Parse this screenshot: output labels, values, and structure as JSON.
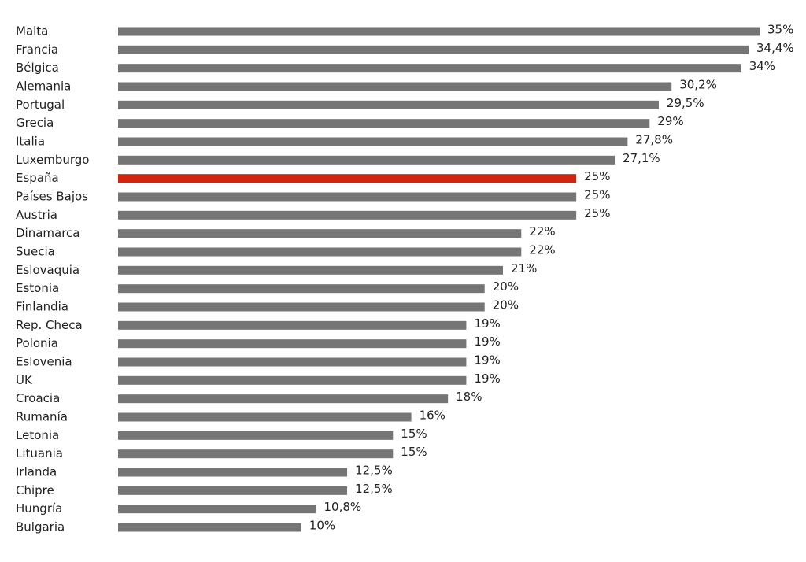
{
  "chart_data": {
    "type": "bar",
    "orientation": "horizontal",
    "categories": [
      "Malta",
      "Francia",
      "Bélgica",
      "Alemania",
      "Portugal",
      "Grecia",
      "Italia",
      "Luxemburgo",
      "España",
      "Países Bajos",
      "Austria",
      "Dinamarca",
      "Suecia",
      "Eslovaquia",
      "Estonia",
      "Finlandia",
      "Rep. Checa",
      "Polonia",
      "Eslovenia",
      "UK",
      "Croacia",
      "Rumanía",
      "Letonia",
      "Lituania",
      "Irlanda",
      "Chipre",
      "Hungría",
      "Bulgaria"
    ],
    "values": [
      35,
      34.4,
      34,
      30.2,
      29.5,
      29,
      27.8,
      27.1,
      25,
      25,
      25,
      22,
      22,
      21,
      20,
      20,
      19,
      19,
      19,
      19,
      18,
      16,
      15,
      15,
      12.5,
      12.5,
      10.8,
      10
    ],
    "value_labels": [
      "35%",
      "34,4%",
      "34%",
      "30,2%",
      "29,5%",
      "29%",
      "27,8%",
      "27,1%",
      "25%",
      "25%",
      "25%",
      "22%",
      "22%",
      "21%",
      "20%",
      "20%",
      "19%",
      "19%",
      "19%",
      "19%",
      "18%",
      "16%",
      "15%",
      "15%",
      "12,5%",
      "12,5%",
      "10,8%",
      "10%"
    ],
    "colors": [
      "#757575",
      "#757575",
      "#757575",
      "#757575",
      "#757575",
      "#757575",
      "#757575",
      "#757575",
      "#d0260f",
      "#757575",
      "#757575",
      "#757575",
      "#757575",
      "#757575",
      "#757575",
      "#757575",
      "#757575",
      "#757575",
      "#757575",
      "#757575",
      "#757575",
      "#757575",
      "#757575",
      "#757575",
      "#757575",
      "#757575",
      "#757575",
      "#757575"
    ]
  }
}
